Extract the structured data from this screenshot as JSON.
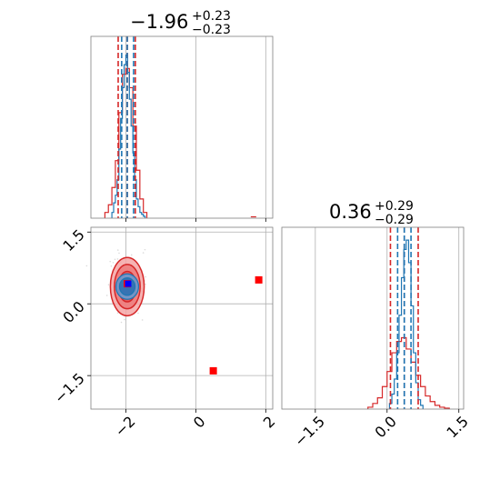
{
  "colors": {
    "red": "#d62728",
    "blue": "#1f77b4",
    "marker_red": "#ff0000",
    "marker_blue": "#0000ff",
    "frame": "#808080",
    "grid": "#b0b0b0"
  },
  "chart_data": {
    "type": "corner",
    "grid": true,
    "params": [
      {
        "title": {
          "value": "−1.96",
          "sup": "+0.23",
          "sub": "−0.23"
        },
        "range": [
          -3.0,
          2.2
        ],
        "ticks": [
          -2,
          0,
          2
        ],
        "tick_labels": [
          "−2",
          "0",
          "2"
        ],
        "quantiles": {
          "red": [
            -2.22,
            -1.96,
            -1.73
          ],
          "blue": [
            -2.12,
            -1.96,
            -1.78
          ]
        },
        "hist_red": {
          "edges": [
            -2.6,
            -2.5,
            -2.4,
            -2.3,
            -2.2,
            -2.1,
            -2.0,
            -1.9,
            -1.8,
            -1.7,
            -1.6,
            -1.5,
            -1.4
          ],
          "counts": [
            0.03,
            0.07,
            0.16,
            0.3,
            0.55,
            0.75,
            0.78,
            0.68,
            0.48,
            0.25,
            0.1,
            0.03
          ]
        },
        "hist_blue": {
          "edges": [
            -2.4,
            -2.35,
            -2.3,
            -2.25,
            -2.2,
            -2.15,
            -2.1,
            -2.05,
            -2.0,
            -1.95,
            -1.9,
            -1.85,
            -1.8,
            -1.75,
            -1.7,
            -1.65,
            -1.6,
            -1.55,
            -1.5,
            -1.45
          ],
          "counts": [
            0.03,
            0.08,
            0.12,
            0.2,
            0.36,
            0.52,
            0.68,
            0.8,
            0.85,
            0.76,
            0.62,
            0.48,
            0.34,
            0.2,
            0.1,
            0.06,
            0.03,
            0.02,
            0.01
          ],
          "peak": 0.88
        },
        "outlier_red": [
          1.65,
          0.012
        ]
      },
      {
        "title": {
          "value": "0.36",
          "sup": "+0.29",
          "sub": "−0.29"
        },
        "range": [
          -2.2,
          1.6
        ],
        "ticks": [
          -1.5,
          0.0,
          1.5
        ],
        "tick_labels": [
          "−1.5",
          "0.0",
          "1.5"
        ],
        "quantiles": {
          "red": [
            0.07,
            0.36,
            0.65
          ],
          "blue": [
            0.22,
            0.36,
            0.5
          ]
        },
        "hist_red": {
          "edges": [
            -0.4,
            -0.3,
            -0.2,
            -0.1,
            0.0,
            0.1,
            0.2,
            0.3,
            0.4,
            0.5,
            0.6,
            0.7,
            0.8,
            0.9,
            1.0,
            1.1,
            1.2,
            1.3
          ],
          "counts": [
            0.01,
            0.03,
            0.06,
            0.12,
            0.2,
            0.3,
            0.36,
            0.38,
            0.32,
            0.25,
            0.18,
            0.12,
            0.07,
            0.04,
            0.02,
            0.01,
            0.005
          ]
        },
        "hist_blue": {
          "edges": [
            0.05,
            0.1,
            0.15,
            0.2,
            0.25,
            0.3,
            0.35,
            0.4,
            0.45,
            0.5,
            0.55,
            0.6,
            0.65,
            0.7,
            0.75
          ],
          "counts": [
            0.03,
            0.08,
            0.16,
            0.3,
            0.5,
            0.7,
            0.85,
            0.9,
            0.78,
            0.55,
            0.3,
            0.14,
            0.05,
            0.02
          ],
          "peak": 0.92
        }
      }
    ],
    "joint": {
      "xrange": [
        -3.0,
        2.2
      ],
      "yrange": [
        -2.2,
        1.6
      ],
      "x_ticks": [
        -2,
        0,
        2
      ],
      "x_tick_labels": [
        "−2",
        "0",
        "2"
      ],
      "y_ticks": [
        -1.5,
        0.0,
        1.5
      ],
      "y_tick_labels": [
        "−1.5",
        "0.0",
        "1.5"
      ],
      "red_contour": {
        "center": [
          -1.96,
          0.36
        ],
        "sigma": [
          0.23,
          0.29
        ]
      },
      "blue_contour": {
        "center": [
          -1.96,
          0.36
        ],
        "sigma": [
          0.17,
          0.14
        ]
      },
      "markers_red": [
        [
          1.8,
          0.5
        ],
        [
          0.5,
          -1.4
        ],
        [
          -1.96,
          0.42
        ]
      ],
      "markers_blue": [
        [
          -1.96,
          0.42
        ]
      ]
    }
  }
}
